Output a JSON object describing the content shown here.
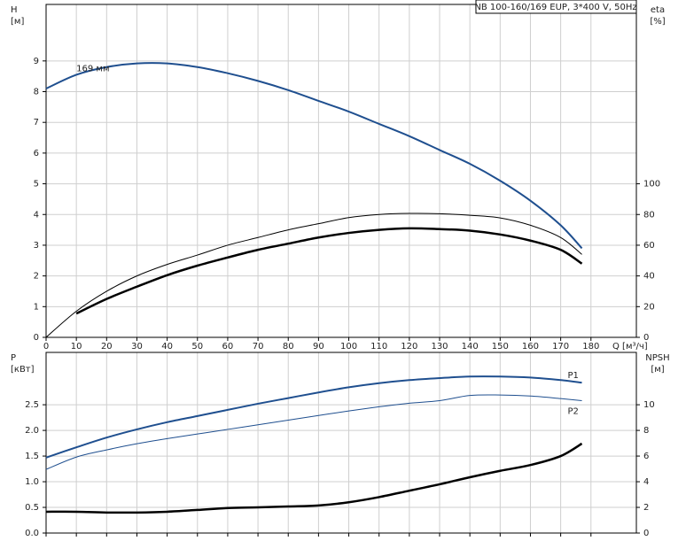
{
  "chart_data": [
    {
      "type": "line",
      "title": "NB 100-160/169 EUP, 3*400 V, 50Hz",
      "y_label": "H",
      "y_unit": "[м]",
      "y2_label": "eta",
      "y2_unit": "[%]",
      "x_label": "Q [м³/ч]",
      "xlim": [
        0,
        195
      ],
      "ylim": [
        0,
        10.84
      ],
      "y2lim": [
        0,
        216.8
      ],
      "xticks": [
        0,
        10,
        20,
        30,
        40,
        50,
        60,
        70,
        80,
        90,
        100,
        110,
        120,
        130,
        140,
        150,
        160,
        170,
        180
      ],
      "yticks": [
        0,
        1,
        2,
        3,
        4,
        5,
        6,
        7,
        8,
        9
      ],
      "y2ticks": [
        0,
        20,
        40,
        60,
        80,
        100
      ],
      "grid": true,
      "x": [
        0,
        10,
        20,
        30,
        40,
        50,
        60,
        70,
        80,
        90,
        100,
        110,
        120,
        130,
        140,
        150,
        160,
        170,
        177
      ],
      "series": [
        {
          "name": "169 мм",
          "color": "#1f4f8f",
          "width": 2,
          "values": [
            8.1,
            8.55,
            8.8,
            8.92,
            8.92,
            8.8,
            8.6,
            8.35,
            8.05,
            7.7,
            7.35,
            6.95,
            6.55,
            6.1,
            5.65,
            5.1,
            4.45,
            3.65,
            2.9
          ]
        },
        {
          "color": "#000000",
          "width": 1,
          "axis": "y2",
          "values": [
            0,
            17,
            30,
            40,
            47.5,
            53.6,
            60,
            65,
            70,
            74,
            78,
            80,
            80.7,
            80.5,
            79.5,
            77.8,
            73,
            65,
            54
          ]
        },
        {
          "color": "#000000",
          "width": 2.5,
          "axis": "y2",
          "values": [
            null,
            15.5,
            25,
            33,
            40.5,
            46.7,
            52,
            57,
            61,
            65,
            68,
            70,
            71,
            70.5,
            69.5,
            67,
            63,
            57,
            48
          ]
        }
      ]
    },
    {
      "type": "line",
      "y_label": "P",
      "y_unit": "[кВт]",
      "y2_label": "NPSH",
      "y2_unit": "[м]",
      "xlim": [
        0,
        195
      ],
      "ylim": [
        0,
        3.52
      ],
      "y2lim": [
        0,
        14.08
      ],
      "yticks": [
        {
          "value": 0,
          "label": "0.0"
        },
        0.5,
        {
          "value": 1,
          "label": "1.0"
        },
        1.5,
        {
          "value": 2,
          "label": "2.0"
        },
        2.5
      ],
      "y2ticks": [
        0,
        2,
        4,
        6,
        8,
        10
      ],
      "grid": true,
      "x": [
        0,
        10,
        20,
        30,
        40,
        50,
        60,
        70,
        80,
        90,
        100,
        110,
        120,
        130,
        140,
        150,
        160,
        170,
        177
      ],
      "series": [
        {
          "name": "P1",
          "color": "#1f4f8f",
          "width": 2,
          "values": [
            1.47,
            1.67,
            1.86,
            2.02,
            2.16,
            2.28,
            2.4,
            2.52,
            2.63,
            2.74,
            2.84,
            2.92,
            2.98,
            3.02,
            3.05,
            3.05,
            3.03,
            2.98,
            2.93
          ]
        },
        {
          "name": "P2",
          "color": "#1f4f8f",
          "width": 1,
          "values": [
            1.24,
            1.48,
            1.62,
            1.74,
            1.84,
            1.93,
            2.02,
            2.11,
            2.2,
            2.29,
            2.38,
            2.46,
            2.53,
            2.58,
            2.68,
            2.69,
            2.67,
            2.62,
            2.58
          ]
        },
        {
          "color": "#000000",
          "width": 2.5,
          "axis": "y2",
          "values": [
            1.66,
            1.66,
            1.6,
            1.6,
            1.66,
            1.8,
            1.95,
            2.0,
            2.07,
            2.15,
            2.4,
            2.8,
            3.3,
            3.8,
            4.35,
            4.85,
            5.3,
            6.0,
            6.97
          ]
        }
      ]
    }
  ]
}
